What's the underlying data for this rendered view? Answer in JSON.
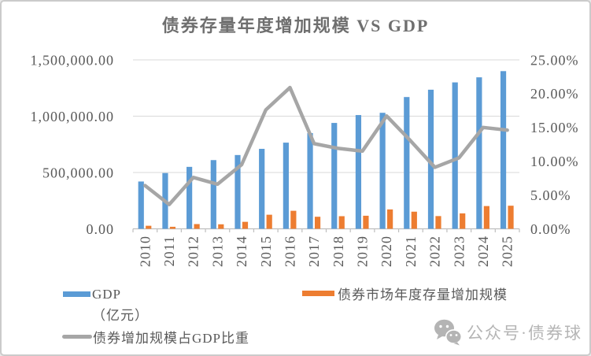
{
  "chart_data": {
    "type": "combo",
    "title": "债券存量年度增加规模  VS  GDP",
    "categories": [
      "2010",
      "2011",
      "2012",
      "2013",
      "2014",
      "2015",
      "2016",
      "2017",
      "2018",
      "2019",
      "2020",
      "2021",
      "2022",
      "2023",
      "2024",
      "2025"
    ],
    "series": [
      {
        "name": "GDP（亿元）",
        "type": "bar",
        "axis": "left",
        "color": "#5B9BD5",
        "values": [
          420000,
          495000,
          550000,
          610000,
          655000,
          710000,
          765000,
          850000,
          940000,
          1010000,
          1030000,
          1170000,
          1235000,
          1300000,
          1345000,
          1400000
        ]
      },
      {
        "name": "债券市场年度存量增加规模",
        "type": "bar",
        "axis": "left",
        "color": "#ED7D31",
        "values": [
          27000,
          18000,
          42000,
          40000,
          62000,
          125000,
          160000,
          107000,
          112000,
          116000,
          172000,
          152000,
          113000,
          137000,
          202000,
          205000
        ]
      },
      {
        "name": "债券增加规模占GDP比重",
        "type": "line",
        "axis": "right",
        "color": "#A6A6A6",
        "values_pct": [
          6.4,
          3.6,
          7.6,
          6.6,
          9.5,
          17.6,
          20.9,
          12.6,
          11.9,
          11.5,
          16.7,
          13.0,
          9.1,
          10.5,
          15.0,
          14.6
        ]
      }
    ],
    "left_axis": {
      "min": 0,
      "max": 1500000,
      "tick_labels": [
        "1,500,000.00",
        "1,000,000.00",
        "500,000.00",
        "0.00"
      ]
    },
    "right_axis": {
      "min": 0,
      "max": 25,
      "tick_labels": [
        "25.00%",
        "20.00%",
        "15.00%",
        "10.00%",
        "5.00%",
        "0.00%"
      ]
    },
    "grid": "horizontal-only",
    "gridline_color": "#D9D9D9",
    "axis_line_color": "#BFBFBF",
    "legend_position": "bottom-left"
  },
  "legend": {
    "gdp_label": "GDP",
    "gdp_unit": "（亿元）",
    "bond_label": "债券市场年度存量增加规模",
    "ratio_label": "债券增加规模占GDP比重"
  },
  "watermark": {
    "icon": "wechat-icon",
    "text": "公众号·债券球"
  }
}
